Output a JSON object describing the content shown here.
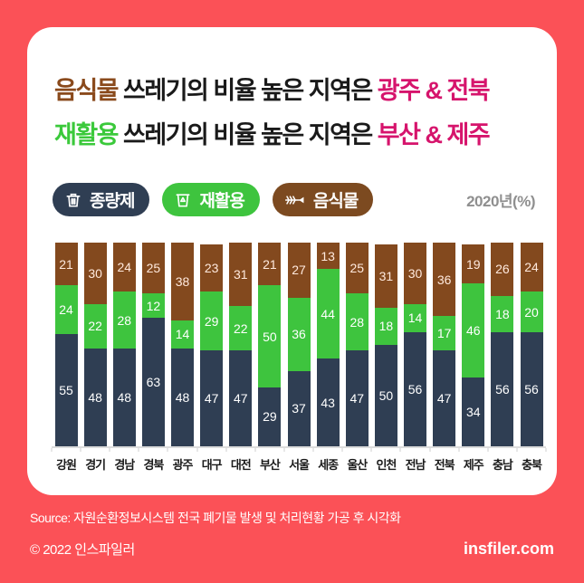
{
  "title": {
    "line1": {
      "keyword": "음식물",
      "middle": " 쓰레기의 비율 높은 지역은 ",
      "highlight": "광주 & 전북"
    },
    "line2": {
      "keyword": "재활용",
      "middle": " 쓰레기의 비율 높은 지역은 ",
      "highlight": "부산 & 제주"
    }
  },
  "legend": {
    "items": [
      {
        "label": "종량제",
        "icon": "trash-icon",
        "color": "#2f3e53"
      },
      {
        "label": "재활용",
        "icon": "recycle-bin-icon",
        "color": "#3ec43e"
      },
      {
        "label": "음식물",
        "icon": "fishbone-icon",
        "color": "#7c4a20"
      }
    ],
    "year_label": "2020년(%)"
  },
  "chart_data": {
    "type": "bar",
    "stacked": true,
    "unit": "percent",
    "title": "2020년(%)",
    "ylim": [
      0,
      100
    ],
    "grid": false,
    "categories": [
      "강원",
      "경기",
      "경남",
      "경북",
      "광주",
      "대구",
      "대전",
      "부산",
      "서울",
      "세종",
      "울산",
      "인천",
      "전남",
      "전북",
      "제주",
      "충남",
      "충북"
    ],
    "series": [
      {
        "name": "종량제",
        "color": "#2f3e53",
        "label_color": "#ffffff",
        "values": [
          55,
          48,
          48,
          63,
          48,
          47,
          47,
          29,
          37,
          43,
          47,
          50,
          56,
          47,
          34,
          56,
          56
        ]
      },
      {
        "name": "재활용",
        "color": "#3ec43e",
        "label_color": "#ffffff",
        "values": [
          24,
          22,
          28,
          12,
          14,
          29,
          22,
          50,
          36,
          44,
          28,
          18,
          14,
          17,
          46,
          18,
          20
        ]
      },
      {
        "name": "음식물",
        "color": "#83491e",
        "label_color": "#ffe9dd",
        "values": [
          21,
          30,
          24,
          25,
          38,
          23,
          31,
          21,
          27,
          13,
          25,
          31,
          30,
          36,
          19,
          26,
          24
        ]
      }
    ]
  },
  "source": "Source: 자원순환정보시스템 전국 폐기물 발생 및 처리현황 가공 후 시각화",
  "footer": {
    "copyright": "© 2022 인스파일러",
    "site": "insfiler.com"
  },
  "theme": {
    "background": "#fb5157",
    "card": "#ffffff",
    "highlight_pink": "#d6146c",
    "keyword_brown": "#8a4a1c",
    "keyword_green": "#3bc93b",
    "axis_gray": "#dcdcdc",
    "year_gray": "#8f8f8f"
  }
}
